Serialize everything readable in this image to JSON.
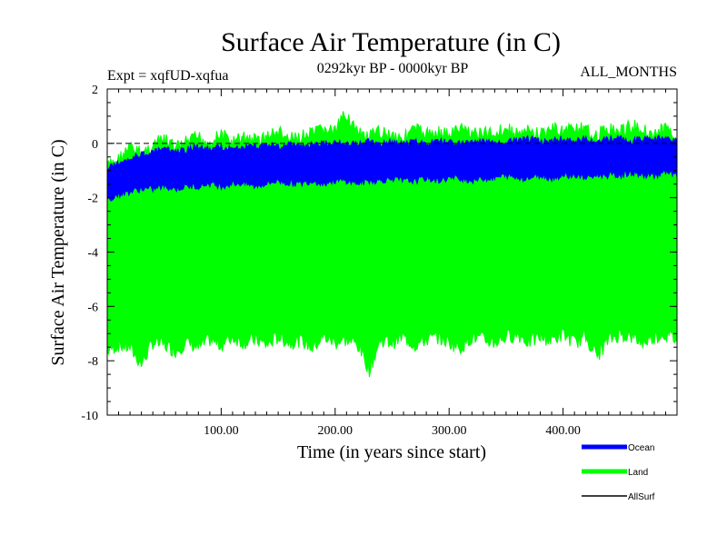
{
  "chart_data": {
    "type": "line",
    "title": "Surface Air Temperature (in C)",
    "subtitle_left": "Expt = xqfUD-xqfua",
    "subtitle_center": "0292kyr BP - 0000kyr BP",
    "subtitle_right": "ALL_MONTHS",
    "xlabel": "Time (in years since start)",
    "ylabel": "Surface Air Temperature (in C)",
    "xlim": [
      0,
      500
    ],
    "ylim": [
      -10,
      2
    ],
    "xticks": [
      100,
      200,
      300,
      400
    ],
    "xtick_labels": [
      "100.00",
      "200.00",
      "300.00",
      "400.00"
    ],
    "yticks": [
      2,
      0,
      -2,
      -4,
      -6,
      -8,
      -10
    ],
    "ytick_labels": [
      "2",
      "0",
      "-2",
      "-4",
      "-6",
      "-8",
      "-10"
    ],
    "reference_line": 0,
    "series": [
      {
        "name": "Land",
        "color": "#00ff00",
        "x": [
          0,
          10,
          20,
          30,
          40,
          50,
          60,
          70,
          80,
          90,
          100,
          110,
          120,
          130,
          140,
          150,
          160,
          170,
          180,
          190,
          200,
          210,
          220,
          230,
          240,
          250,
          260,
          270,
          280,
          290,
          300,
          310,
          320,
          330,
          340,
          350,
          360,
          370,
          380,
          390,
          400,
          410,
          420,
          430,
          440,
          450,
          460,
          470,
          480,
          490,
          500
        ],
        "values_upper": [
          -0.6,
          -0.3,
          0.1,
          -0.1,
          0.2,
          0.4,
          0.1,
          0.3,
          0.5,
          0.3,
          0.6,
          0.3,
          0.5,
          0.4,
          0.5,
          0.7,
          0.4,
          0.5,
          0.6,
          0.8,
          0.7,
          1.4,
          0.6,
          0.5,
          0.7,
          0.6,
          0.5,
          0.8,
          0.6,
          0.7,
          0.6,
          0.8,
          0.7,
          0.6,
          0.7,
          0.8,
          0.6,
          0.7,
          0.6,
          0.8,
          0.7,
          0.9,
          0.7,
          0.6,
          0.8,
          0.7,
          0.9,
          0.8,
          0.6,
          0.8,
          0.5
        ],
        "values_lower": [
          -7.9,
          -7.7,
          -7.8,
          -8.4,
          -7.6,
          -7.7,
          -7.9,
          -7.6,
          -7.8,
          -7.5,
          -7.7,
          -7.4,
          -7.6,
          -7.5,
          -7.7,
          -7.4,
          -7.6,
          -7.5,
          -7.8,
          -7.4,
          -7.6,
          -7.5,
          -7.7,
          -8.6,
          -7.5,
          -7.6,
          -7.4,
          -7.7,
          -7.5,
          -7.4,
          -7.6,
          -7.8,
          -7.4,
          -7.5,
          -7.6,
          -7.4,
          -7.3,
          -7.6,
          -7.4,
          -7.5,
          -7.3,
          -7.6,
          -7.4,
          -8.1,
          -7.5,
          -7.3,
          -7.4,
          -7.6,
          -7.4,
          -7.3,
          -7.5
        ]
      },
      {
        "name": "Ocean",
        "color": "#0000ff",
        "x": [
          0,
          10,
          20,
          30,
          40,
          50,
          60,
          70,
          80,
          90,
          100,
          110,
          120,
          130,
          140,
          150,
          160,
          170,
          180,
          190,
          200,
          210,
          220,
          230,
          240,
          250,
          260,
          270,
          280,
          290,
          300,
          310,
          320,
          330,
          340,
          350,
          360,
          370,
          380,
          390,
          400,
          410,
          420,
          430,
          440,
          450,
          460,
          470,
          480,
          490,
          500
        ],
        "values_upper": [
          -0.8,
          -0.6,
          -0.4,
          -0.3,
          -0.2,
          -0.1,
          -0.2,
          -0.1,
          0.0,
          -0.1,
          0.0,
          -0.1,
          0.0,
          0.0,
          0.1,
          0.0,
          0.1,
          0.0,
          0.1,
          0.1,
          0.2,
          0.1,
          0.1,
          0.2,
          0.1,
          0.2,
          0.1,
          0.2,
          0.1,
          0.2,
          0.2,
          0.1,
          0.2,
          0.2,
          0.1,
          0.2,
          0.2,
          0.3,
          0.2,
          0.2,
          0.3,
          0.2,
          0.3,
          0.2,
          0.3,
          0.3,
          0.2,
          0.3,
          0.3,
          0.3,
          0.2
        ],
        "values_lower": [
          -2.2,
          -2.0,
          -1.9,
          -1.8,
          -1.8,
          -1.7,
          -1.8,
          -1.7,
          -1.7,
          -1.6,
          -1.7,
          -1.6,
          -1.6,
          -1.7,
          -1.6,
          -1.5,
          -1.6,
          -1.6,
          -1.5,
          -1.6,
          -1.5,
          -1.5,
          -1.6,
          -1.5,
          -1.5,
          -1.4,
          -1.5,
          -1.5,
          -1.4,
          -1.5,
          -1.4,
          -1.4,
          -1.5,
          -1.4,
          -1.4,
          -1.3,
          -1.4,
          -1.4,
          -1.3,
          -1.4,
          -1.3,
          -1.3,
          -1.4,
          -1.3,
          -1.3,
          -1.3,
          -1.2,
          -1.3,
          -1.3,
          -1.2,
          -1.3
        ]
      },
      {
        "name": "AllSurf",
        "color": "#000000",
        "x": [
          0,
          10,
          20,
          30,
          40,
          50,
          60,
          70,
          80,
          90,
          100,
          110,
          120,
          130,
          140,
          150,
          160,
          170,
          180,
          190,
          200,
          210,
          220,
          230,
          240,
          250,
          260,
          270,
          280,
          290,
          300,
          310,
          320,
          330,
          340,
          350,
          360,
          370,
          380,
          390,
          400,
          410,
          420,
          430,
          440,
          450,
          460,
          470,
          480,
          490,
          500
        ],
        "values_upper": [
          -0.9,
          -0.7,
          -0.5,
          -0.4,
          -0.3,
          -0.2,
          -0.3,
          -0.2,
          -0.1,
          -0.2,
          -0.1,
          -0.2,
          -0.1,
          -0.1,
          0.0,
          -0.1,
          0.0,
          -0.1,
          0.0,
          0.0,
          0.1,
          0.0,
          0.0,
          0.1,
          0.0,
          0.1,
          0.0,
          0.1,
          0.0,
          0.1,
          0.1,
          0.0,
          0.1,
          0.1,
          0.0,
          0.1,
          0.1,
          0.2,
          0.1,
          0.1,
          0.2,
          0.1,
          0.2,
          0.1,
          0.2,
          0.2,
          0.1,
          0.2,
          0.2,
          0.2,
          0.1
        ],
        "values_lower": [
          -2.3,
          -2.1,
          -2.0,
          -1.9,
          -1.9,
          -1.8,
          -1.9,
          -1.8,
          -1.8,
          -1.7,
          -1.8,
          -1.7,
          -1.7,
          -1.8,
          -1.7,
          -1.6,
          -1.7,
          -1.7,
          -1.6,
          -1.7,
          -1.6,
          -1.6,
          -1.7,
          -1.6,
          -1.6,
          -1.5,
          -1.6,
          -1.6,
          -1.5,
          -1.6,
          -1.5,
          -1.5,
          -1.6,
          -1.5,
          -1.5,
          -1.4,
          -1.5,
          -1.5,
          -1.4,
          -1.5,
          -1.4,
          -1.4,
          -1.5,
          -1.4,
          -1.4,
          -1.4,
          -1.3,
          -1.4,
          -1.4,
          -1.3,
          -1.4
        ]
      }
    ],
    "legend": [
      {
        "label": "Ocean",
        "color": "#0000ff"
      },
      {
        "label": "Land",
        "color": "#00ff00"
      },
      {
        "label": "AllSurf",
        "color": "#000000"
      }
    ],
    "legend_position": "bottom-right"
  }
}
